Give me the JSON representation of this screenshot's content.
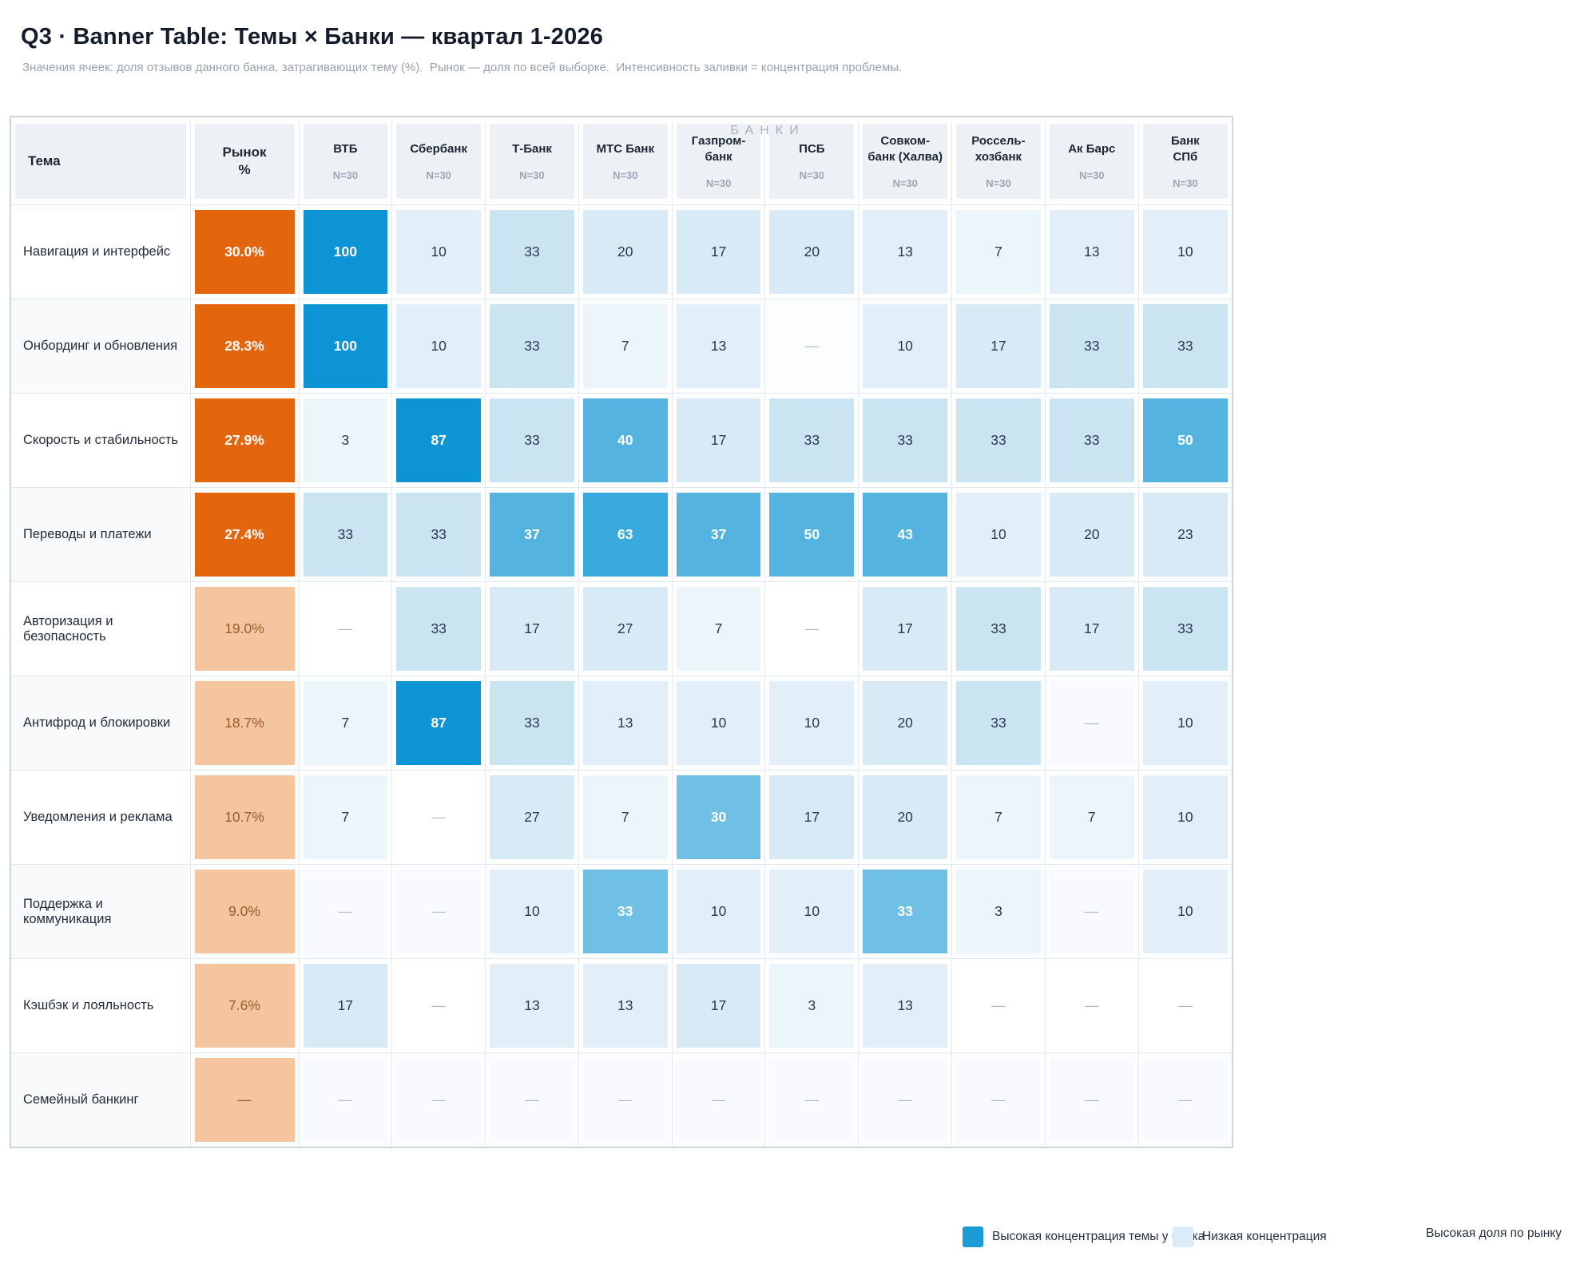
{
  "header": {
    "title": "Q3 · Banner Table: Темы × Банки — квартал 1-2026",
    "subtitle": "Значения ячеек: доля отзывов данного банка, затрагивающих тему (%).  Рынок — доля по всей выборке.  Интенсивность заливки = концентрация проблемы."
  },
  "banks_group_label": "БАНКИ",
  "table": {
    "theme_header": "Тема",
    "market_header": "Рынок\n%",
    "banks": [
      {
        "name": "ВТБ",
        "n": "N=30"
      },
      {
        "name": "Сбербанк",
        "n": "N=30"
      },
      {
        "name": "Т-Банк",
        "n": "N=30"
      },
      {
        "name": "МТС Банк",
        "n": "N=30"
      },
      {
        "name": "Газпром-\nбанк",
        "n": "N=30"
      },
      {
        "name": "ПСБ",
        "n": "N=30"
      },
      {
        "name": "Совком-\nбанк (Халва)",
        "n": "N=30"
      },
      {
        "name": "Россель-\nхозбанк",
        "n": "N=30"
      },
      {
        "name": "Ак Барс",
        "n": "N=30"
      },
      {
        "name": "Банк\nСПб",
        "n": "N=30"
      }
    ],
    "rows": [
      {
        "theme": "Навигация и интерфейс",
        "market": {
          "v": "30.0%",
          "lvl": "hot"
        },
        "cells": [
          {
            "v": "100",
            "lvl": "b5"
          },
          {
            "v": "10",
            "lvl": "l2"
          },
          {
            "v": "33",
            "lvl": "l4"
          },
          {
            "v": "20",
            "lvl": "l3"
          },
          {
            "v": "17",
            "lvl": "l3"
          },
          {
            "v": "20",
            "lvl": "l3"
          },
          {
            "v": "13",
            "lvl": "l2"
          },
          {
            "v": "7",
            "lvl": "l1"
          },
          {
            "v": "13",
            "lvl": "l2"
          },
          {
            "v": "10",
            "lvl": "l2"
          }
        ]
      },
      {
        "theme": "Онбординг и обновления",
        "market": {
          "v": "28.3%",
          "lvl": "hot"
        },
        "cells": [
          {
            "v": "100",
            "lvl": "b5"
          },
          {
            "v": "10",
            "lvl": "l2"
          },
          {
            "v": "33",
            "lvl": "l4"
          },
          {
            "v": "7",
            "lvl": "l1"
          },
          {
            "v": "13",
            "lvl": "l2"
          },
          {
            "v": "—",
            "lvl": "none"
          },
          {
            "v": "10",
            "lvl": "l2"
          },
          {
            "v": "17",
            "lvl": "l3"
          },
          {
            "v": "33",
            "lvl": "l4"
          },
          {
            "v": "33",
            "lvl": "l4"
          }
        ]
      },
      {
        "theme": "Скорость и стабильность",
        "market": {
          "v": "27.9%",
          "lvl": "hot"
        },
        "cells": [
          {
            "v": "3",
            "lvl": "l1"
          },
          {
            "v": "87",
            "lvl": "b5"
          },
          {
            "v": "33",
            "lvl": "l4"
          },
          {
            "v": "40",
            "lvl": "b3"
          },
          {
            "v": "17",
            "lvl": "l3"
          },
          {
            "v": "33",
            "lvl": "l4"
          },
          {
            "v": "33",
            "lvl": "l4"
          },
          {
            "v": "33",
            "lvl": "l4"
          },
          {
            "v": "33",
            "lvl": "l4"
          },
          {
            "v": "50",
            "lvl": "b3"
          }
        ]
      },
      {
        "theme": "Переводы и платежи",
        "market": {
          "v": "27.4%",
          "lvl": "hot"
        },
        "cells": [
          {
            "v": "33",
            "lvl": "l4"
          },
          {
            "v": "33",
            "lvl": "l4"
          },
          {
            "v": "37",
            "lvl": "b3"
          },
          {
            "v": "63",
            "lvl": "b4"
          },
          {
            "v": "37",
            "lvl": "b3"
          },
          {
            "v": "50",
            "lvl": "b3"
          },
          {
            "v": "43",
            "lvl": "b3"
          },
          {
            "v": "10",
            "lvl": "l2"
          },
          {
            "v": "20",
            "lvl": "l3"
          },
          {
            "v": "23",
            "lvl": "l3"
          }
        ]
      },
      {
        "theme": "Авторизация и безопасность",
        "market": {
          "v": "19.0%",
          "lvl": "warm"
        },
        "cells": [
          {
            "v": "—",
            "lvl": "none"
          },
          {
            "v": "33",
            "lvl": "l4"
          },
          {
            "v": "17",
            "lvl": "l3"
          },
          {
            "v": "27",
            "lvl": "l3"
          },
          {
            "v": "7",
            "lvl": "l1"
          },
          {
            "v": "—",
            "lvl": "none"
          },
          {
            "v": "17",
            "lvl": "l3"
          },
          {
            "v": "33",
            "lvl": "l4"
          },
          {
            "v": "17",
            "lvl": "l3"
          },
          {
            "v": "33",
            "lvl": "l4"
          }
        ]
      },
      {
        "theme": "Антифрод и блокировки",
        "market": {
          "v": "18.7%",
          "lvl": "warm"
        },
        "cells": [
          {
            "v": "7",
            "lvl": "l1"
          },
          {
            "v": "87",
            "lvl": "b5"
          },
          {
            "v": "33",
            "lvl": "l4"
          },
          {
            "v": "13",
            "lvl": "l2"
          },
          {
            "v": "10",
            "lvl": "l2"
          },
          {
            "v": "10",
            "lvl": "l2"
          },
          {
            "v": "20",
            "lvl": "l3"
          },
          {
            "v": "33",
            "lvl": "l4"
          },
          {
            "v": "—",
            "lvl": "faint"
          },
          {
            "v": "10",
            "lvl": "l2"
          }
        ]
      },
      {
        "theme": "Уведомления и реклама",
        "market": {
          "v": "10.7%",
          "lvl": "warm"
        },
        "cells": [
          {
            "v": "7",
            "lvl": "l1"
          },
          {
            "v": "—",
            "lvl": "none"
          },
          {
            "v": "27",
            "lvl": "l3"
          },
          {
            "v": "7",
            "lvl": "l1"
          },
          {
            "v": "30",
            "lvl": "b3b"
          },
          {
            "v": "17",
            "lvl": "l3"
          },
          {
            "v": "20",
            "lvl": "l3"
          },
          {
            "v": "7",
            "lvl": "l1"
          },
          {
            "v": "7",
            "lvl": "l1"
          },
          {
            "v": "10",
            "lvl": "l2"
          }
        ]
      },
      {
        "theme": "Поддержка и коммуникация",
        "market": {
          "v": "9.0%",
          "lvl": "warm"
        },
        "cells": [
          {
            "v": "—",
            "lvl": "faint"
          },
          {
            "v": "—",
            "lvl": "faint"
          },
          {
            "v": "10",
            "lvl": "l2"
          },
          {
            "v": "33",
            "lvl": "b3b"
          },
          {
            "v": "10",
            "lvl": "l2"
          },
          {
            "v": "10",
            "lvl": "l2"
          },
          {
            "v": "33",
            "lvl": "b3b"
          },
          {
            "v": "3",
            "lvl": "l1"
          },
          {
            "v": "—",
            "lvl": "faint"
          },
          {
            "v": "10",
            "lvl": "l2"
          }
        ]
      },
      {
        "theme": "Кэшбэк и лояльность",
        "market": {
          "v": "7.6%",
          "lvl": "warm"
        },
        "cells": [
          {
            "v": "17",
            "lvl": "l3"
          },
          {
            "v": "—",
            "lvl": "none"
          },
          {
            "v": "13",
            "lvl": "l2"
          },
          {
            "v": "13",
            "lvl": "l2"
          },
          {
            "v": "17",
            "lvl": "l3"
          },
          {
            "v": "3",
            "lvl": "l1"
          },
          {
            "v": "13",
            "lvl": "l2"
          },
          {
            "v": "—",
            "lvl": "none"
          },
          {
            "v": "—",
            "lvl": "none"
          },
          {
            "v": "—",
            "lvl": "none"
          }
        ]
      },
      {
        "theme": "Семейный банкинг",
        "market": {
          "v": "—",
          "lvl": "warm"
        },
        "cells": [
          {
            "v": "—",
            "lvl": "faint"
          },
          {
            "v": "—",
            "lvl": "faint"
          },
          {
            "v": "—",
            "lvl": "faint"
          },
          {
            "v": "—",
            "lvl": "faint"
          },
          {
            "v": "—",
            "lvl": "faint"
          },
          {
            "v": "—",
            "lvl": "faint"
          },
          {
            "v": "—",
            "lvl": "faint"
          },
          {
            "v": "—",
            "lvl": "faint"
          },
          {
            "v": "—",
            "lvl": "faint"
          },
          {
            "v": "—",
            "lvl": "faint"
          }
        ]
      }
    ]
  },
  "legend": {
    "high_label": "Высокая концентрация темы у банка",
    "low_label": "Низкая концентрация",
    "market_label": "Высокая доля по рынку"
  },
  "colors": {
    "market_high": "#e3650e",
    "market_low": "#f5c5a0",
    "cell_strong": "#0d94d4",
    "cell_mid_dark": "#39aadd",
    "cell_mid": "#55b4df",
    "cell_mid_light": "#6fc0e4",
    "legend_high": "#1b9cd6",
    "legend_low": "#d9ecf7"
  },
  "chart_data": {
    "type": "heatmap",
    "title": "Q3 · Banner Table: Темы × Банки — квартал 1-2026",
    "note": "Значения ячеек: доля отзывов данного банка, затрагивающих тему (%). Рынок — доля по всей выборке. Интенсивность заливки = концентрация проблемы.",
    "column_group": "БАНКИ",
    "columns": [
      "Рынок %",
      "ВТБ",
      "Сбербанк",
      "Т-Банк",
      "МТС Банк",
      "Газпром-банк",
      "ПСБ",
      "Совком-банк (Халва)",
      "Россель-хозбанк",
      "Ак Барс",
      "Банк СПб"
    ],
    "sample_size_per_bank": 30,
    "rows": [
      {
        "theme": "Навигация и интерфейс",
        "market_pct": 30.0,
        "values": [
          100,
          10,
          33,
          20,
          17,
          20,
          13,
          7,
          13,
          10
        ]
      },
      {
        "theme": "Онбординг и обновления",
        "market_pct": 28.3,
        "values": [
          100,
          10,
          33,
          7,
          13,
          null,
          10,
          17,
          33,
          33
        ]
      },
      {
        "theme": "Скорость и стабильность",
        "market_pct": 27.9,
        "values": [
          3,
          87,
          33,
          40,
          17,
          33,
          33,
          33,
          33,
          50
        ]
      },
      {
        "theme": "Переводы и платежи",
        "market_pct": 27.4,
        "values": [
          33,
          33,
          37,
          63,
          37,
          50,
          43,
          10,
          20,
          23
        ]
      },
      {
        "theme": "Авторизация и безопасность",
        "market_pct": 19.0,
        "values": [
          null,
          33,
          17,
          27,
          7,
          null,
          17,
          33,
          17,
          33
        ]
      },
      {
        "theme": "Антифрод и блокировки",
        "market_pct": 18.7,
        "values": [
          7,
          87,
          33,
          13,
          10,
          10,
          20,
          33,
          null,
          10
        ]
      },
      {
        "theme": "Уведомления и реклама",
        "market_pct": 10.7,
        "values": [
          7,
          null,
          27,
          7,
          30,
          17,
          20,
          7,
          7,
          10
        ]
      },
      {
        "theme": "Поддержка и коммуникация",
        "market_pct": 9.0,
        "values": [
          null,
          null,
          10,
          33,
          10,
          10,
          33,
          3,
          null,
          10
        ]
      },
      {
        "theme": "Кэшбэк и лояльность",
        "market_pct": 7.6,
        "values": [
          17,
          null,
          13,
          13,
          17,
          3,
          13,
          null,
          null,
          null
        ]
      },
      {
        "theme": "Семейный банкинг",
        "market_pct": null,
        "values": [
          null,
          null,
          null,
          null,
          null,
          null,
          null,
          null,
          null,
          null
        ]
      }
    ]
  }
}
